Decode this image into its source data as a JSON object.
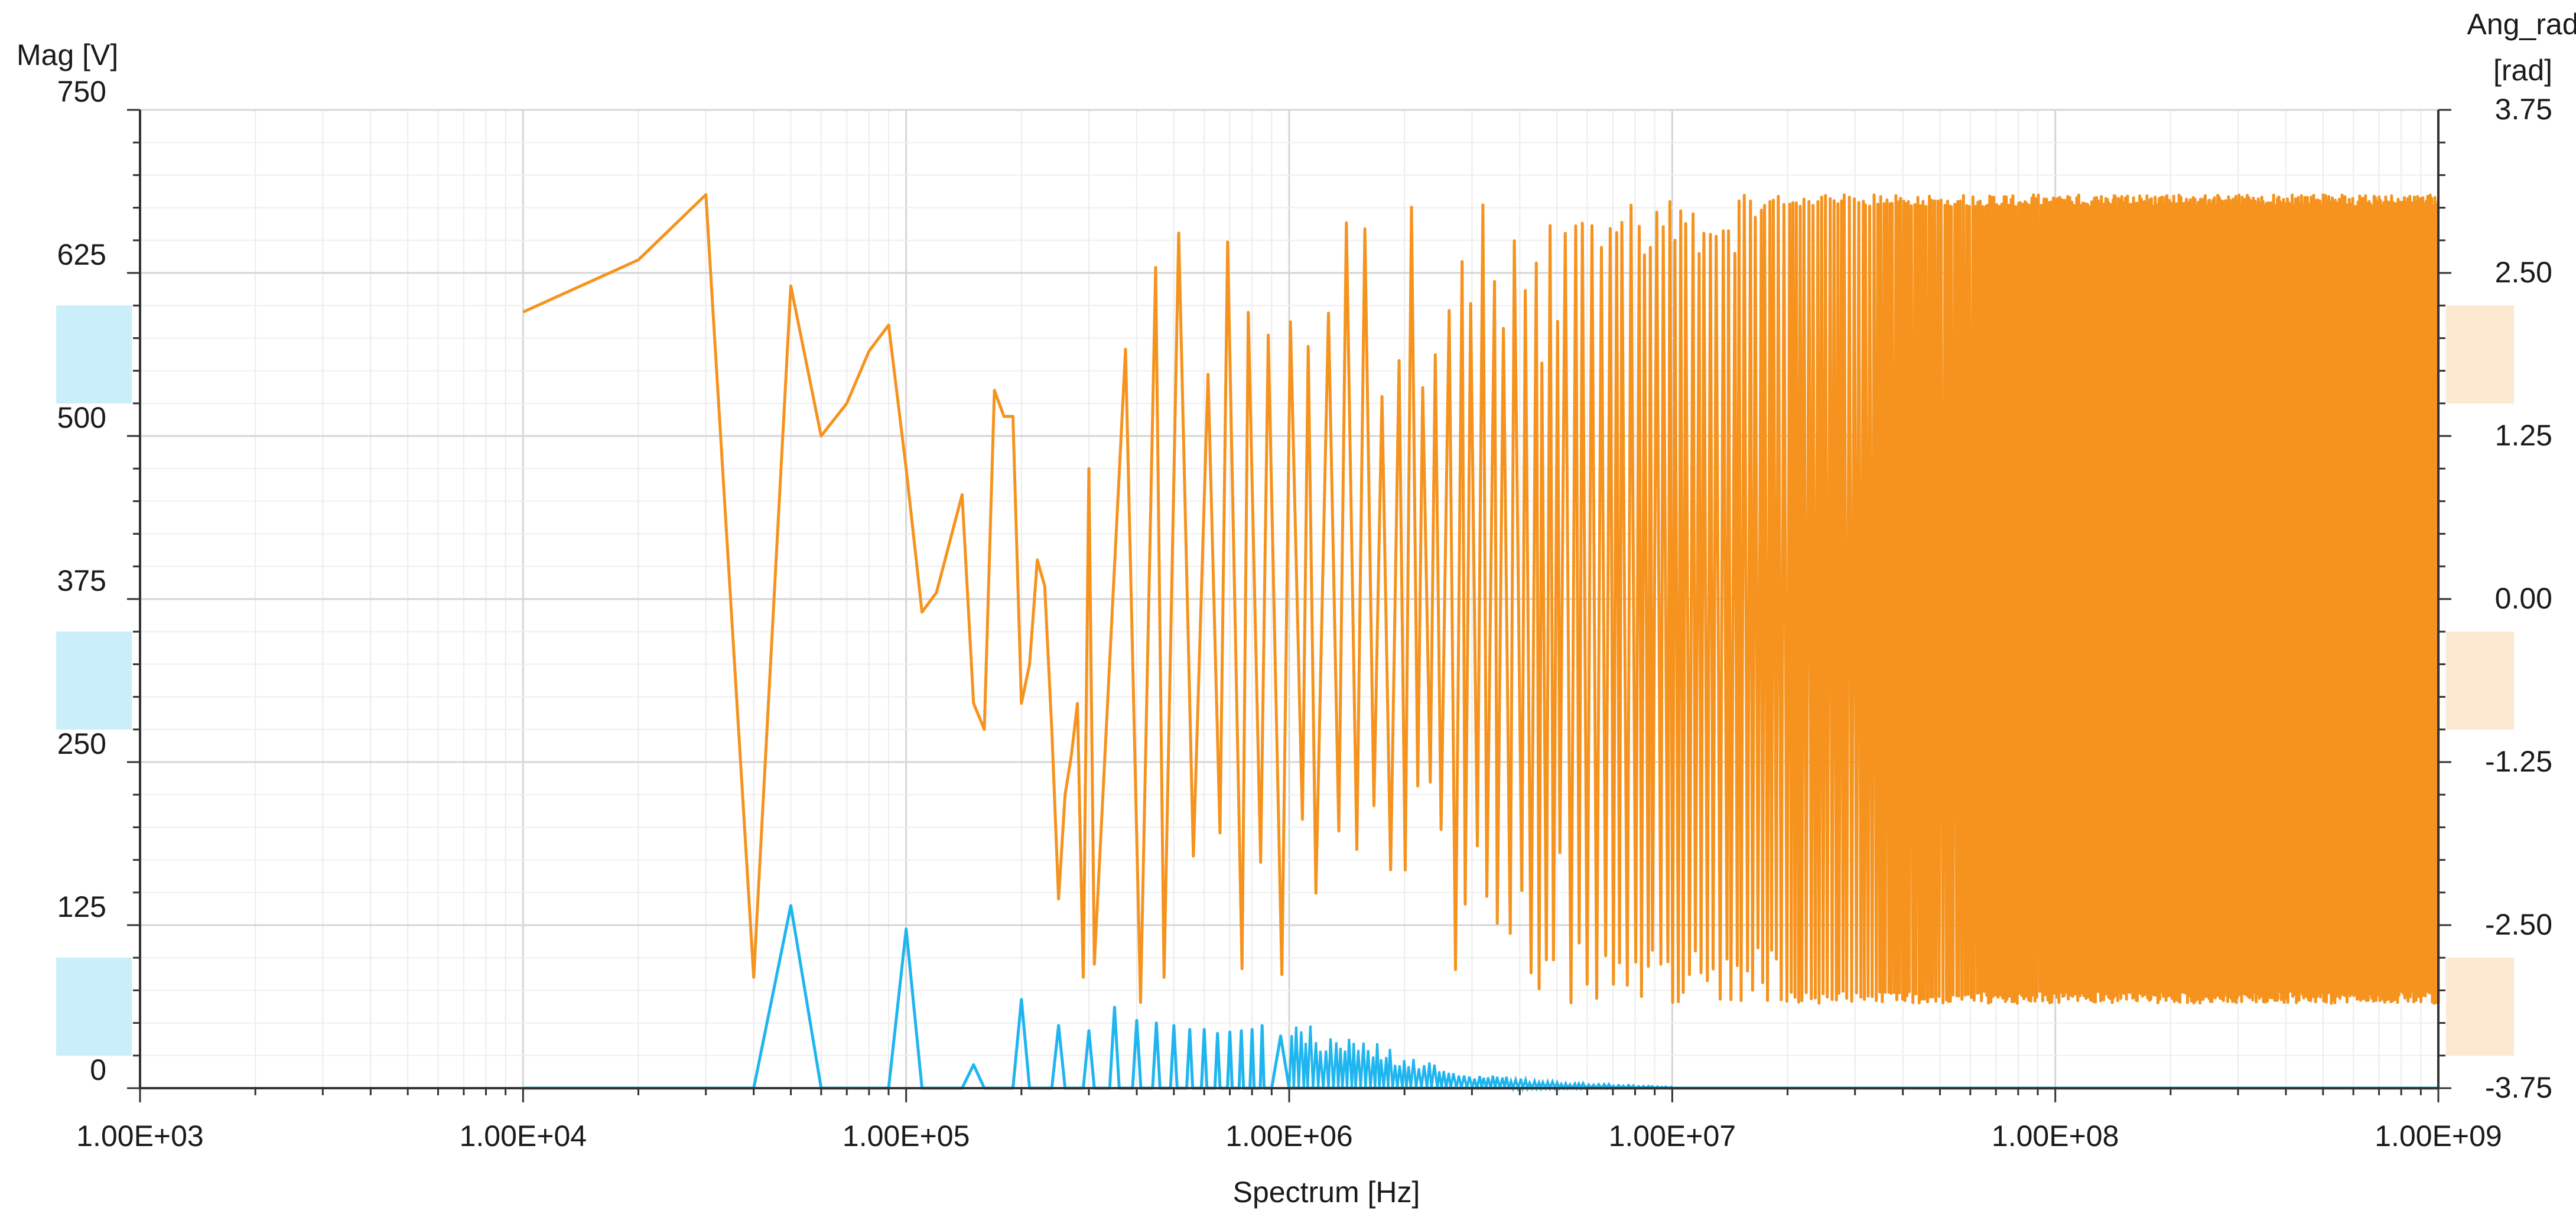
{
  "chart_data": {
    "type": "line",
    "xlabel": "Spectrum [Hz]",
    "x_scale": "log",
    "xlim": [
      1000,
      1000000000
    ],
    "x_ticks": [
      "1.00E+03",
      "1.00E+04",
      "1.00E+05",
      "1.00E+06",
      "1.00E+07",
      "1.00E+08",
      "1.00E+09"
    ],
    "grid": true,
    "y_left": {
      "label": "Mag [V]",
      "ylim": [
        0,
        750
      ],
      "ticks": [
        "0",
        "125",
        "250",
        "375",
        "500",
        "625",
        "750"
      ],
      "band_color": "#cbeefb"
    },
    "y_right": {
      "label_line1": "Ang_rad",
      "label_line2": "[rad]",
      "ylim": [
        -3.75,
        3.75
      ],
      "ticks": [
        "-3.75",
        "-2.50",
        "-1.25",
        "0.00",
        "1.25",
        "2.50",
        "3.75"
      ],
      "band_color": "#fde8d2"
    },
    "series": [
      {
        "axis": "right",
        "color": "#f5931e",
        "points": [
          [
            10000,
            2.2
          ],
          [
            20000,
            2.6
          ],
          [
            30000,
            3.1
          ],
          [
            40000,
            -2.9
          ],
          [
            50000,
            2.4
          ],
          [
            60000,
            1.25
          ],
          [
            70000,
            1.5
          ],
          [
            80000,
            1.9
          ],
          [
            90000,
            2.1
          ],
          [
            100000,
            1.0
          ],
          [
            110000,
            -0.1
          ],
          [
            120000,
            0.05
          ],
          [
            140000,
            0.8
          ],
          [
            150000,
            -0.8
          ],
          [
            160000,
            -1.0
          ],
          [
            170000,
            1.6
          ],
          [
            180000,
            1.4
          ],
          [
            190000,
            1.4
          ],
          [
            200000,
            -0.8
          ],
          [
            210000,
            -0.5
          ],
          [
            220000,
            0.3
          ],
          [
            230000,
            0.1
          ],
          [
            240000,
            -1.0
          ],
          [
            250000,
            -2.3
          ],
          [
            260000,
            -1.5
          ],
          [
            270000,
            -1.2
          ],
          [
            280000,
            -0.8
          ],
          [
            290000,
            -2.9
          ],
          [
            300000,
            1.0
          ],
          [
            310000,
            -2.8
          ]
        ],
        "dense_region": {
          "from": 340000,
          "to": 1000000000,
          "max": 3.1,
          "min": -3.1
        }
      },
      {
        "axis": "left",
        "color": "#1fb5ef",
        "points": [
          [
            10000,
            0
          ],
          [
            40000,
            0
          ],
          [
            50000,
            140
          ],
          [
            60000,
            0
          ],
          [
            90000,
            0
          ],
          [
            100000,
            122
          ],
          [
            110000,
            0
          ],
          [
            140000,
            0
          ],
          [
            150000,
            18
          ],
          [
            160000,
            0
          ],
          [
            190000,
            0
          ],
          [
            200000,
            68
          ],
          [
            210000,
            0
          ],
          [
            240000,
            0
          ],
          [
            250000,
            48
          ],
          [
            260000,
            0
          ],
          [
            290000,
            0
          ],
          [
            300000,
            44
          ],
          [
            310000,
            0
          ],
          [
            340000,
            0
          ],
          [
            350000,
            62
          ],
          [
            360000,
            0
          ],
          [
            390000,
            0
          ],
          [
            400000,
            52
          ],
          [
            410000,
            0
          ],
          [
            440000,
            0
          ],
          [
            450000,
            50
          ],
          [
            460000,
            0
          ],
          [
            490000,
            0
          ],
          [
            500000,
            48
          ],
          [
            510000,
            0
          ],
          [
            540000,
            0
          ],
          [
            550000,
            45
          ],
          [
            560000,
            0
          ],
          [
            590000,
            0
          ],
          [
            600000,
            45
          ],
          [
            610000,
            0
          ],
          [
            640000,
            0
          ],
          [
            650000,
            42
          ],
          [
            660000,
            0
          ],
          [
            690000,
            0
          ],
          [
            700000,
            43
          ],
          [
            710000,
            0
          ],
          [
            740000,
            0
          ],
          [
            750000,
            44
          ],
          [
            760000,
            0
          ],
          [
            790000,
            0
          ],
          [
            800000,
            45
          ],
          [
            810000,
            0
          ],
          [
            840000,
            0
          ],
          [
            850000,
            48
          ],
          [
            860000,
            0
          ],
          [
            900000,
            0
          ],
          [
            950000,
            40
          ],
          [
            1000000,
            0
          ],
          [
            1000000000,
            0
          ]
        ],
        "dense_region": {
          "from": 1000000,
          "to": 10000000,
          "envelope": [
            [
              1000000,
              52
            ],
            [
              1300000,
              45
            ],
            [
              1700000,
              35
            ],
            [
              2200000,
              22
            ],
            [
              3000000,
              12
            ],
            [
              4500000,
              6
            ],
            [
              7000000,
              3
            ],
            [
              10000000,
              1
            ]
          ]
        }
      }
    ]
  }
}
